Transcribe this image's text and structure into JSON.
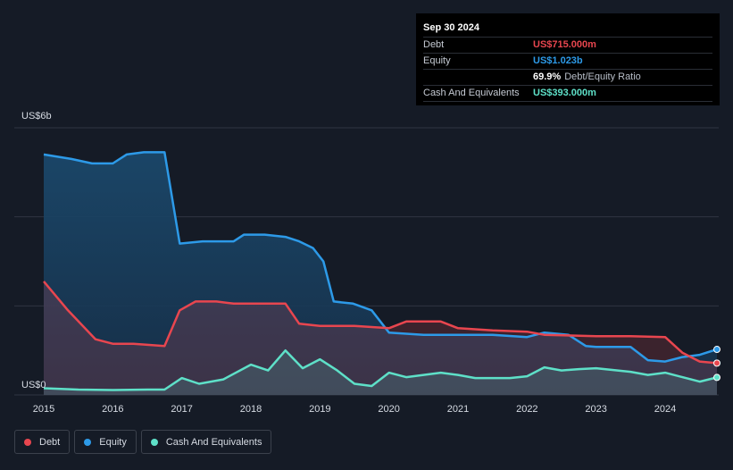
{
  "tooltip": {
    "date": "Sep 30 2024",
    "rows": [
      {
        "label": "Debt",
        "value": "US$715.000m",
        "color": "#e8464f"
      },
      {
        "label": "Equity",
        "value": "US$1.023b",
        "color": "#2d9ae8"
      },
      {
        "label": "",
        "value": "69.9%",
        "suffix": "Debt/Equity Ratio"
      },
      {
        "label": "Cash And Equivalents",
        "value": "US$393.000m",
        "color": "#5ee0c8"
      }
    ]
  },
  "legend": [
    {
      "label": "Debt",
      "color": "#e8464f"
    },
    {
      "label": "Equity",
      "color": "#2d9ae8"
    },
    {
      "label": "Cash And Equivalents",
      "color": "#5ee0c8"
    }
  ],
  "chart_data": {
    "type": "area",
    "y_unit": "US$",
    "ylim": [
      0,
      6
    ],
    "y_tick_labels": [
      {
        "value": 6,
        "label": "US$6b"
      },
      {
        "value": 0,
        "label": "US$0"
      }
    ],
    "gridlines_at": [
      0,
      2,
      4,
      6
    ],
    "xlim": [
      2015,
      2024.75
    ],
    "x_ticks": [
      "2015",
      "2016",
      "2017",
      "2018",
      "2019",
      "2020",
      "2021",
      "2022",
      "2023",
      "2024"
    ],
    "series": [
      {
        "name": "Equity",
        "color": "#2d9ae8",
        "x": [
          2015.0,
          2015.4,
          2015.7,
          2016.0,
          2016.2,
          2016.45,
          2016.75,
          2016.97,
          2017.3,
          2017.75,
          2017.9,
          2018.2,
          2018.5,
          2018.7,
          2018.9,
          2019.05,
          2019.2,
          2019.48,
          2019.75,
          2020.0,
          2020.5,
          2021.0,
          2021.5,
          2022.0,
          2022.25,
          2022.6,
          2022.85,
          2023.0,
          2023.5,
          2023.75,
          2024.0,
          2024.25,
          2024.5,
          2024.75
        ],
        "values": [
          5.4,
          5.3,
          5.2,
          5.2,
          5.4,
          5.45,
          5.45,
          3.4,
          3.45,
          3.45,
          3.6,
          3.6,
          3.55,
          3.45,
          3.3,
          3.0,
          2.1,
          2.05,
          1.9,
          1.4,
          1.35,
          1.35,
          1.35,
          1.3,
          1.4,
          1.35,
          1.1,
          1.08,
          1.08,
          0.78,
          0.75,
          0.85,
          0.9,
          1.023
        ]
      },
      {
        "name": "Debt",
        "color": "#e8464f",
        "x": [
          2015.0,
          2015.35,
          2015.75,
          2016.0,
          2016.3,
          2016.75,
          2016.97,
          2017.2,
          2017.5,
          2017.75,
          2018.25,
          2018.5,
          2018.7,
          2019.0,
          2019.5,
          2020.0,
          2020.25,
          2020.75,
          2021.0,
          2021.5,
          2022.0,
          2022.25,
          2023.0,
          2023.5,
          2024.0,
          2024.25,
          2024.5,
          2024.75
        ],
        "values": [
          2.55,
          1.9,
          1.25,
          1.15,
          1.15,
          1.1,
          1.9,
          2.1,
          2.1,
          2.05,
          2.05,
          2.05,
          1.6,
          1.55,
          1.55,
          1.5,
          1.65,
          1.65,
          1.5,
          1.45,
          1.42,
          1.35,
          1.32,
          1.32,
          1.3,
          0.95,
          0.75,
          0.715
        ]
      },
      {
        "name": "Cash And Equivalents",
        "color": "#5ee0c8",
        "x": [
          2015.0,
          2015.5,
          2016.0,
          2016.5,
          2016.75,
          2017.0,
          2017.25,
          2017.6,
          2018.0,
          2018.25,
          2018.5,
          2018.75,
          2019.0,
          2019.25,
          2019.5,
          2019.75,
          2020.0,
          2020.25,
          2020.75,
          2021.0,
          2021.25,
          2021.75,
          2022.0,
          2022.25,
          2022.5,
          2022.75,
          2023.0,
          2023.5,
          2023.75,
          2024.0,
          2024.25,
          2024.5,
          2024.75
        ],
        "values": [
          0.15,
          0.12,
          0.11,
          0.12,
          0.12,
          0.38,
          0.25,
          0.35,
          0.68,
          0.55,
          1.0,
          0.6,
          0.8,
          0.55,
          0.25,
          0.2,
          0.5,
          0.4,
          0.5,
          0.45,
          0.38,
          0.38,
          0.42,
          0.62,
          0.55,
          0.58,
          0.6,
          0.52,
          0.45,
          0.5,
          0.4,
          0.3,
          0.393
        ]
      }
    ],
    "grid": true,
    "legend_position": "bottom-left"
  }
}
